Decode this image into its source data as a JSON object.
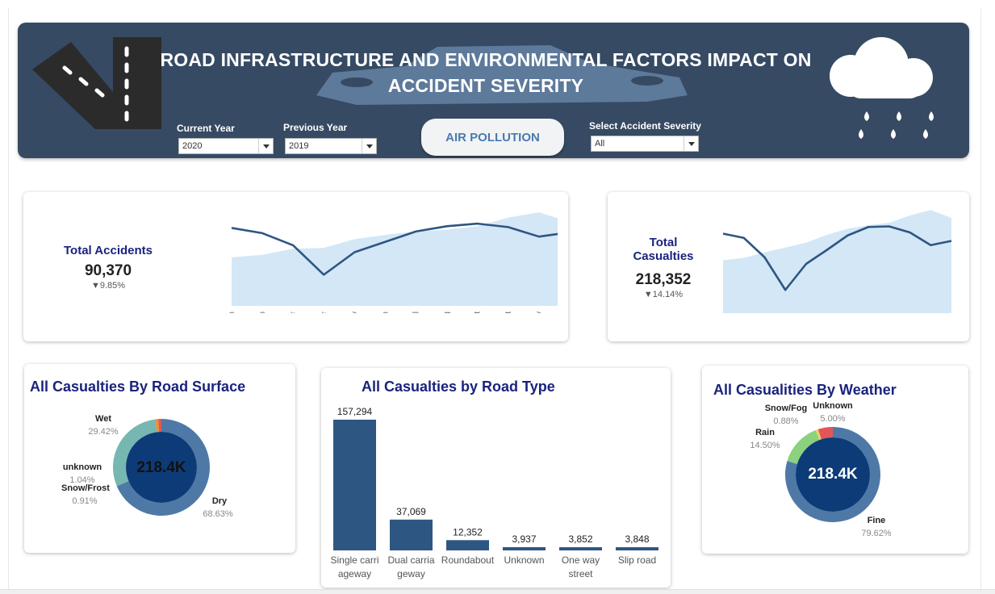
{
  "header": {
    "title_line1": "ROAD INFRASTRUCTURE AND ENVIRONMENTAL FACTORS IMPACT ON",
    "title_line2": "ACCIDENT SEVERITY",
    "road_icon": "road-icon",
    "car_icon": "car-icon",
    "weather_icon": "rain-cloud-icon",
    "current_year_label": "Current Year",
    "current_year_value": "2020",
    "previous_year_label": "Previous Year",
    "previous_year_value": "2019",
    "severity_label": "Select Accident Severity",
    "severity_value": "All",
    "pollution_button": "AIR POLLUTION",
    "bg_color": "#364a63"
  },
  "kpi_accidents": {
    "title": "Total Accidents",
    "value": "90,370",
    "change": "▼9.85%",
    "months": [
      "Jan",
      "Feb",
      "Mar",
      "Apr",
      "May",
      "Jun",
      "Jul",
      "Aug",
      "Sept",
      "Oct",
      "Nov",
      "Dec"
    ]
  },
  "kpi_casualties": {
    "title_line1": "Total",
    "title_line2": "Casualties",
    "value": "218,352",
    "change": "▼14.14%",
    "months": [
      "J",
      "F",
      "M",
      "A",
      "M",
      "J",
      "J",
      "A",
      "S",
      "O",
      "N",
      "D"
    ]
  },
  "road_surface": {
    "title": "All Casualties By Road Surface",
    "center": "218.4K",
    "labels": {
      "wet": "Wet",
      "wet_pct": "29.42%",
      "unknown": "unknown",
      "unknown_pct": "1.04%",
      "snow": "Snow/Frost",
      "snow_pct": "0.91%",
      "dry": "Dry",
      "dry_pct": "68.63%"
    }
  },
  "road_type": {
    "title": "All Casualties by Road Type",
    "value_labels": [
      "157,294",
      "37,069",
      "12,352",
      "3,937",
      "3,852",
      "3,848"
    ],
    "cat_line1": [
      "Single carri",
      "Dual carria",
      "Roundabout",
      "Unknown",
      "One way",
      "Slip road"
    ],
    "cat_line2": [
      "ageway",
      "geway",
      "",
      "",
      "street",
      ""
    ]
  },
  "weather": {
    "title": "All Casualities By Weather",
    "center": "218.4K",
    "labels": {
      "snow": "Snow/Fog",
      "snow_pct": "0.88%",
      "unknown": "Unknown",
      "unknown_pct": "5.00%",
      "rain": "Rain",
      "rain_pct": "14.50%",
      "fine": "Fine",
      "fine_pct": "79.62%"
    }
  },
  "chart_data": [
    {
      "type": "line",
      "x": [
        "Jan",
        "Feb",
        "Mar",
        "Apr",
        "May",
        "Jun",
        "Jul",
        "Aug",
        "Sept",
        "Oct",
        "Nov",
        "Dec"
      ],
      "series": [
        {
          "values": [
            8300,
            8000,
            7300,
            5600,
            6900,
            7500,
            8100,
            8400,
            8550,
            8350,
            7800,
            8050
          ]
        },
        {
          "values": [
            6600,
            6750,
            7100,
            7150,
            7650,
            7900,
            8100,
            8200,
            8400,
            8900,
            9200,
            8650
          ]
        }
      ],
      "ylim": [
        3800,
        10000
      ]
    },
    {
      "type": "line",
      "x": [
        "J",
        "F",
        "M",
        "A",
        "M",
        "J",
        "J",
        "A",
        "S",
        "O",
        "N",
        "D"
      ],
      "series": [
        {
          "values": [
            20200,
            19500,
            16300,
            10900,
            15200,
            17500,
            19900,
            21300,
            21400,
            20400,
            18300,
            19000
          ]
        },
        {
          "values": [
            15800,
            16200,
            17100,
            17900,
            18700,
            20000,
            21000,
            21600,
            22000,
            23200,
            24100,
            22800
          ]
        }
      ],
      "ylim": [
        6000,
        26000
      ]
    },
    {
      "type": "pie",
      "title": "All Casualties By Road Surface",
      "categories": [
        "Dry",
        "Wet",
        "Snow/Frost",
        "unknown"
      ],
      "values": [
        68.63,
        29.42,
        0.91,
        1.04
      ],
      "colors": [
        "#4e79a7",
        "#76b7b2",
        "#f28e2b",
        "#e15759"
      ]
    },
    {
      "type": "bar",
      "title": "All Casualties by Road Type",
      "categories": [
        "Single carriageway",
        "Dual carriageway",
        "Roundabout",
        "Unknown",
        "One way street",
        "Slip road"
      ],
      "values": [
        157294,
        37069,
        12352,
        3937,
        3852,
        3848
      ],
      "color": "#2e5682"
    },
    {
      "type": "pie",
      "title": "All Casualities By Weather",
      "categories": [
        "Fine",
        "Rain",
        "Snow/Fog",
        "Unknown"
      ],
      "values": [
        79.62,
        14.5,
        0.88,
        5.0
      ],
      "colors": [
        "#4e79a7",
        "#8cd17d",
        "#f1ce63",
        "#e15759"
      ]
    }
  ]
}
